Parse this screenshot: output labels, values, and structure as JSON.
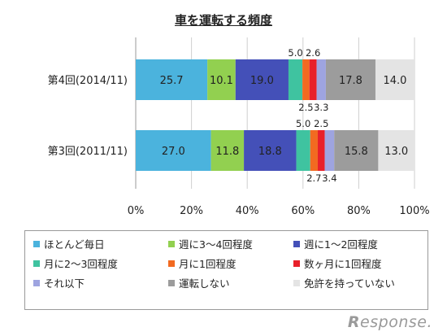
{
  "chart_data": {
    "type": "bar",
    "orientation": "horizontal",
    "stacked": "percent",
    "title": "車を運転する頻度",
    "categories": [
      "第4回(2014/11)",
      "第3回(2011/11)"
    ],
    "series": [
      {
        "name": "ほとんど毎日",
        "values": [
          25.7,
          27.0
        ],
        "color": "#4bb3dd"
      },
      {
        "name": "週に3～4回程度",
        "values": [
          10.1,
          11.8
        ],
        "color": "#92d050"
      },
      {
        "name": "週に1～2回程度",
        "values": [
          19.0,
          18.8
        ],
        "color": "#4450b8"
      },
      {
        "name": "月に2～3回程度",
        "values": [
          5.0,
          5.0
        ],
        "color": "#3fc3a0"
      },
      {
        "name": "月に1回程度",
        "values": [
          2.5,
          2.7
        ],
        "color": "#f26a21"
      },
      {
        "name": "数ヶ月に1回程度",
        "values": [
          2.6,
          2.5
        ],
        "color": "#e8202a"
      },
      {
        "name": "それ以下",
        "values": [
          3.3,
          3.4
        ],
        "color": "#9ea4e0"
      },
      {
        "name": "運転しない",
        "values": [
          17.8,
          15.8
        ],
        "color": "#9c9c9c"
      },
      {
        "name": "免許を持っていない",
        "values": [
          14.0,
          13.0
        ],
        "color": "#e4e4e4"
      }
    ],
    "xlim": [
      0,
      100
    ],
    "x_ticks": [
      "0%",
      "20%",
      "40%",
      "60%",
      "80%",
      "100%"
    ],
    "grid": true,
    "legend_position": "bottom"
  },
  "watermark": {
    "prefix": "R",
    "rest": "esponse."
  }
}
